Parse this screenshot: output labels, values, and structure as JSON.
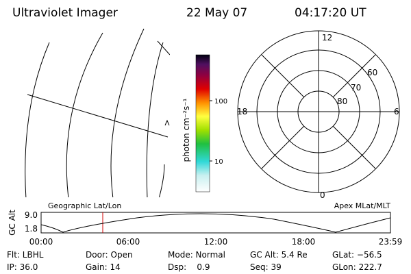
{
  "header": {
    "title": "Ultraviolet Imager",
    "date": "22 May 07",
    "time": "04:17:20 UT"
  },
  "colorbar": {
    "label": "photon cm⁻²s⁻¹",
    "ticks": [
      "100",
      "10"
    ]
  },
  "polar": {
    "mlt_labels": [
      "12",
      "18",
      "6",
      "0"
    ],
    "lat_labels": [
      "60",
      "70",
      "80"
    ]
  },
  "panels": {
    "left": "Geographic Lat/Lon",
    "right": "Apex MLat/MLT"
  },
  "altitude": {
    "axis_label": "GC Alt",
    "yticks": [
      "9.0",
      "1.8"
    ],
    "xticks": [
      "00:00",
      "06:00",
      "12:00",
      "18:00",
      "23:59"
    ]
  },
  "footer": {
    "rows": [
      [
        "Flt: LBHL",
        "Door: Open",
        "Mode: Normal",
        "GC Alt: 5.4 Re",
        "GLat: −56.5"
      ],
      [
        "IP: 36.0",
        "Gain: 14",
        "Dsp:    0.9",
        "Seq: 39",
        "GLon: 222.7"
      ]
    ]
  }
}
